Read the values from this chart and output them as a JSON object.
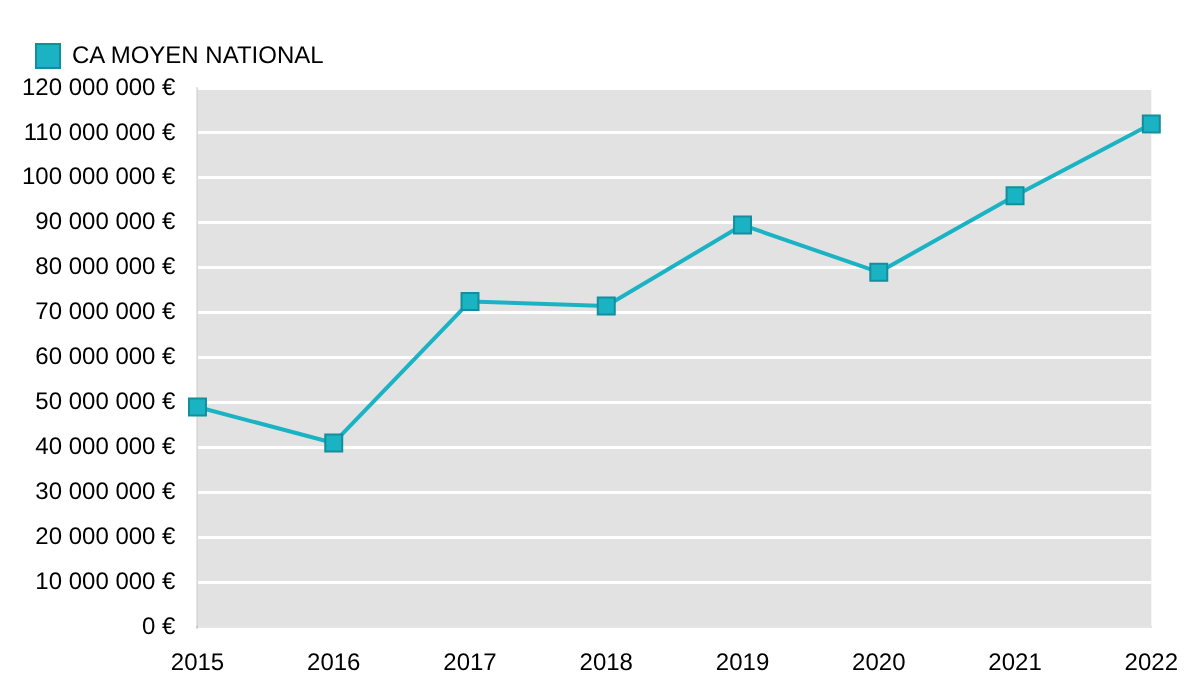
{
  "chart_data": {
    "type": "line",
    "categories": [
      "2015",
      "2016",
      "2017",
      "2018",
      "2019",
      "2020",
      "2021",
      "2022"
    ],
    "series": [
      {
        "name": "CA MOYEN NATIONAL",
        "color": "#1ab3c4",
        "values": [
          49000000,
          41000000,
          72500000,
          71500000,
          89500000,
          79000000,
          96000000,
          112000000
        ]
      }
    ],
    "ylim": [
      0,
      120000000
    ],
    "yticks": [
      {
        "value": 0,
        "label": "0 €"
      },
      {
        "value": 10000000,
        "label": "10 000 000 €"
      },
      {
        "value": 20000000,
        "label": "20 000 000 €"
      },
      {
        "value": 30000000,
        "label": "30 000 000 €"
      },
      {
        "value": 40000000,
        "label": "40 000 000 €"
      },
      {
        "value": 50000000,
        "label": "50 000 000 €"
      },
      {
        "value": 60000000,
        "label": "60 000 000 €"
      },
      {
        "value": 70000000,
        "label": "70 000 000 €"
      },
      {
        "value": 80000000,
        "label": "80 000 000 €"
      },
      {
        "value": 90000000,
        "label": "90 000 000 €"
      },
      {
        "value": 100000000,
        "label": "100 000 000 €"
      },
      {
        "value": 110000000,
        "label": "110 000 000 €"
      },
      {
        "value": 120000000,
        "label": "120 000 000 €"
      }
    ],
    "grid": "y",
    "legend": "top left",
    "marker": "square",
    "line_style": "solid"
  }
}
